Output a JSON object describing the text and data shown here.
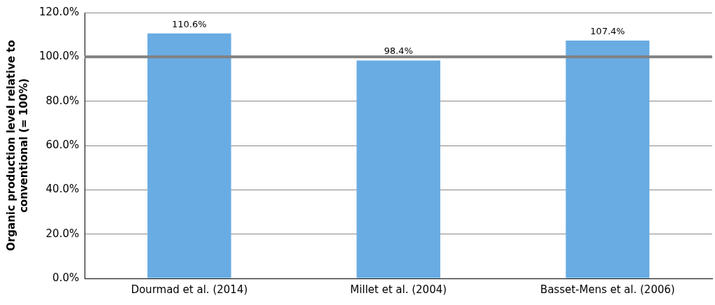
{
  "chart_data": {
    "type": "bar",
    "ylabel": "Organic production level relative to conventional (= 100%)",
    "categories": [
      "Dourmad et al. (2014)",
      "Millet et al. (2004)",
      "Basset-Mens et al. (2006)"
    ],
    "values": [
      110.6,
      98.4,
      107.4
    ],
    "color": "#69ace3",
    "value_labels": [
      "110.6%",
      "98.4%",
      "107.4%"
    ],
    "ylim": [
      0,
      120
    ],
    "yticks": [
      {
        "value": 0,
        "label": "0.0%"
      },
      {
        "value": 20,
        "label": "20.0%"
      },
      {
        "value": 40,
        "label": "40.0%"
      },
      {
        "value": 60,
        "label": "60.0%"
      },
      {
        "value": 80,
        "label": "80.0%"
      },
      {
        "value": 100,
        "label": "100.0%"
      },
      {
        "value": 120,
        "label": "120.0%"
      }
    ],
    "ref_lines": [
      {
        "axis": "y",
        "value": 100,
        "color": "#808080"
      }
    ],
    "grid": "y",
    "legend": false
  }
}
